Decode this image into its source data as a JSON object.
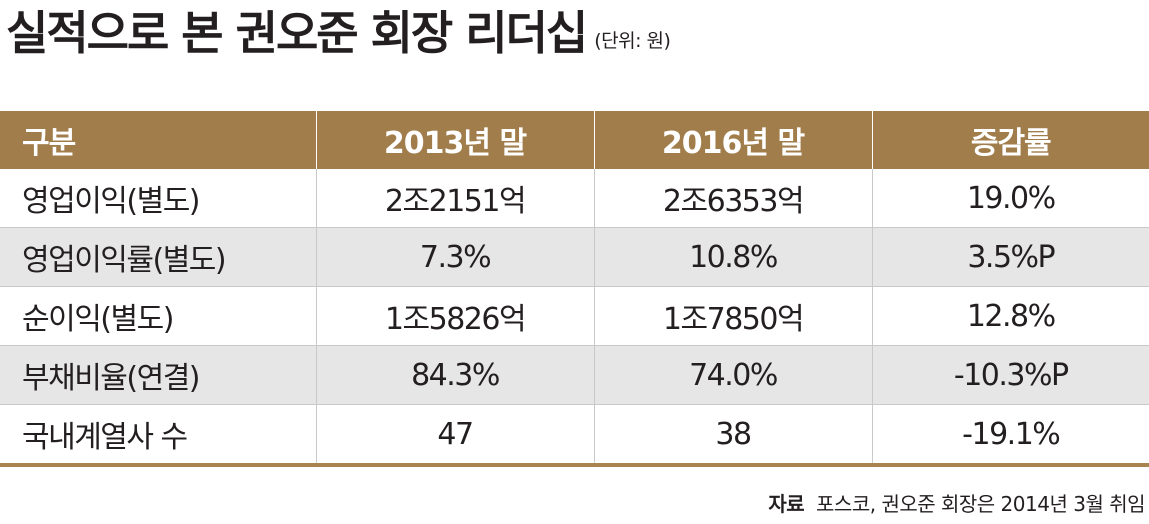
{
  "title": "실적으로 본 권오준 회장 리더십",
  "unit": "(단위: 원)",
  "table": {
    "headers": [
      "구분",
      "2013년 말",
      "2016년 말",
      "증감률"
    ],
    "rows": [
      [
        "영업이익(별도)",
        "2조2151억",
        "2조6353억",
        "19.0%"
      ],
      [
        "영업이익률(별도)",
        "7.3%",
        "10.8%",
        "3.5%P"
      ],
      [
        "순이익(별도)",
        "1조5826억",
        "1조7850억",
        "12.8%"
      ],
      [
        "부채비율(연결)",
        "84.3%",
        "74.0%",
        "-10.3%P"
      ],
      [
        "국내계열사 수",
        "47",
        "38",
        "-19.1%"
      ]
    ]
  },
  "source": {
    "label": "자료",
    "text": "포스코, 권오준 회장은 2014년 3월 취임"
  },
  "colors": {
    "header_bg": "#a17d4b",
    "shaded_row": "#e6e6e6",
    "bottom_rule": "#a8834d"
  }
}
